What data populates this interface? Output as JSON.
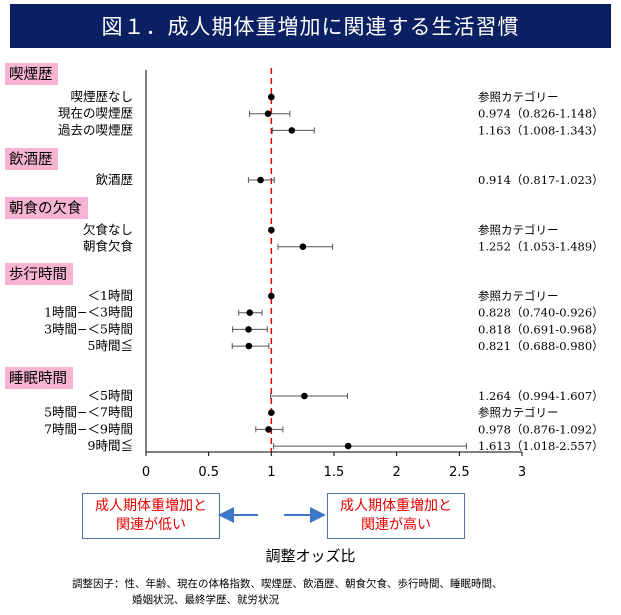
{
  "chart_data": {
    "type": "forest",
    "title": "図１．成人期体重増加に関連する生活習慣",
    "xlabel": "調整オッズ比",
    "xlim": [
      0,
      3
    ],
    "xticks": [
      "0",
      "0.5",
      "1",
      "1.5",
      "2",
      "2.5",
      "3"
    ],
    "reference_line": 1,
    "groups": [
      {
        "name": "喫煙歴",
        "rows": [
          {
            "label": "喫煙歴なし",
            "or": 1,
            "ci": null,
            "text": "参照カテゴリー"
          },
          {
            "label": "現在の喫煙歴",
            "or": 0.974,
            "ci": [
              0.826,
              1.148
            ],
            "text": "0.974（0.826-1.148）"
          },
          {
            "label": "過去の喫煙歴",
            "or": 1.163,
            "ci": [
              1.008,
              1.343
            ],
            "text": "1.163（1.008-1.343）"
          }
        ]
      },
      {
        "name": "飲酒歴",
        "rows": [
          {
            "label": "飲酒歴",
            "or": 0.914,
            "ci": [
              0.817,
              1.023
            ],
            "text": "0.914（0.817-1.023）"
          }
        ]
      },
      {
        "name": "朝食の欠食",
        "rows": [
          {
            "label": "欠食なし",
            "or": 1,
            "ci": null,
            "text": "参照カテゴリー"
          },
          {
            "label": "朝食欠食",
            "or": 1.252,
            "ci": [
              1.053,
              1.489
            ],
            "text": "1.252（1.053-1.489）"
          }
        ]
      },
      {
        "name": "歩行時間",
        "rows": [
          {
            "label": "＜1時間",
            "or": 1,
            "ci": null,
            "text": "参照カテゴリー"
          },
          {
            "label": "1時間−＜3時間",
            "or": 0.828,
            "ci": [
              0.74,
              0.926
            ],
            "text": "0.828（0.740-0.926）"
          },
          {
            "label": "3時間−＜5時間",
            "or": 0.818,
            "ci": [
              0.691,
              0.968
            ],
            "text": "0.818（0.691-0.968）"
          },
          {
            "label": "5時間≦",
            "or": 0.821,
            "ci": [
              0.688,
              0.98
            ],
            "text": "0.821（0.688-0.980）"
          }
        ]
      },
      {
        "name": "睡眠時間",
        "rows": [
          {
            "label": "＜5時間",
            "or": 1.264,
            "ci": [
              0.994,
              1.607
            ],
            "text": "1.264（0.994-1.607）"
          },
          {
            "label": "5時間−＜7時間",
            "or": 1,
            "ci": null,
            "text": "参照カテゴリー"
          },
          {
            "label": "7時間−＜9時間",
            "or": 0.978,
            "ci": [
              0.876,
              1.092
            ],
            "text": "0.978（0.876-1.092）"
          },
          {
            "label": "9時間≦",
            "or": 1.613,
            "ci": [
              1.018,
              2.557
            ],
            "text": "1.613（1.018-2.557）"
          }
        ]
      }
    ],
    "annotations": {
      "left_box": [
        "成人期体重増加と",
        "関連が低い"
      ],
      "right_box": [
        "成人期体重増加と",
        "関連が高い"
      ]
    },
    "footnote": [
      "調整因子：性、年齢、現在の体格指数、喫煙歴、飲酒歴、朝食欠食、歩行時間、睡眠時間、",
      "婚姻状況、最終学歴、就労状況"
    ],
    "colors": {
      "title_bg": "#0b1f63",
      "group_label_bg": "#f6b3d2",
      "reference_line": "#e60000",
      "annotation_text": "#e60000",
      "annotation_border": "#4f6fb0",
      "arrow": "#3d78c8"
    }
  }
}
